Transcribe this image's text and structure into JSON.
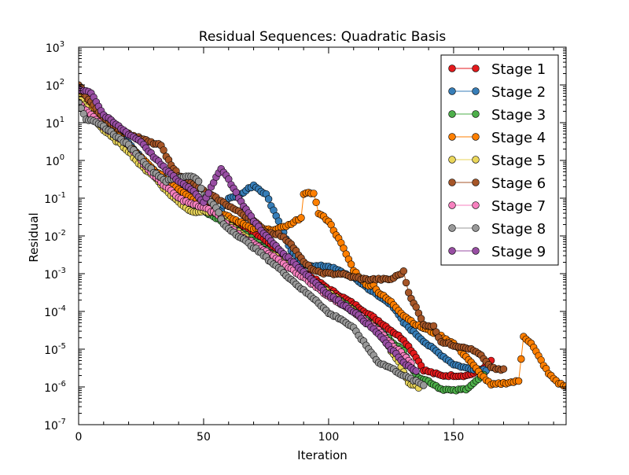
{
  "chart_data": {
    "type": "line",
    "title": "Residual Sequences: Quadratic Basis",
    "xlabel": "Iteration",
    "ylabel": "Residual",
    "xlim": [
      0,
      195
    ],
    "ylim_log10": [
      -7,
      3
    ],
    "yscale": "log",
    "grid": false,
    "legend_position": "upper-right",
    "x_ticks": [
      {
        "value": 0,
        "label": "0"
      },
      {
        "value": 50,
        "label": "50"
      },
      {
        "value": 100,
        "label": "100"
      },
      {
        "value": 150,
        "label": "150"
      }
    ],
    "y_ticks": [
      {
        "exp": -7,
        "base": "10",
        "sup": "-7"
      },
      {
        "exp": -6,
        "base": "10",
        "sup": "-6"
      },
      {
        "exp": -5,
        "base": "10",
        "sup": "-5"
      },
      {
        "exp": -4,
        "base": "10",
        "sup": "-4"
      },
      {
        "exp": -3,
        "base": "10",
        "sup": "-3"
      },
      {
        "exp": -2,
        "base": "10",
        "sup": "-2"
      },
      {
        "exp": -1,
        "base": "10",
        "sup": "-1"
      },
      {
        "exp": 0,
        "base": "10",
        "sup": "0"
      },
      {
        "exp": 1,
        "base": "10",
        "sup": "1"
      },
      {
        "exp": 2,
        "base": "10",
        "sup": "2"
      },
      {
        "exp": 3,
        "base": "10",
        "sup": "3"
      }
    ],
    "series": [
      {
        "name": "Stage 1",
        "color": "#e41a1c",
        "x_end": 165,
        "knots": [
          [
            0,
            1.8
          ],
          [
            10,
            0.95
          ],
          [
            20,
            0.35
          ],
          [
            30,
            -0.25
          ],
          [
            40,
            -0.75
          ],
          [
            50,
            -1.2
          ],
          [
            60,
            -1.5
          ],
          [
            70,
            -1.9
          ],
          [
            80,
            -2.4
          ],
          [
            90,
            -2.95
          ],
          [
            100,
            -3.4
          ],
          [
            110,
            -3.8
          ],
          [
            120,
            -4.25
          ],
          [
            130,
            -4.75
          ],
          [
            135,
            -5.2
          ],
          [
            138,
            -5.55
          ],
          [
            145,
            -5.7
          ],
          [
            155,
            -5.7
          ],
          [
            160,
            -5.6
          ],
          [
            165,
            -5.3
          ]
        ]
      },
      {
        "name": "Stage 2",
        "color": "#377eb8",
        "x_end": 163,
        "knots": [
          [
            0,
            1.7
          ],
          [
            10,
            1.0
          ],
          [
            20,
            0.45
          ],
          [
            30,
            -0.3
          ],
          [
            40,
            -0.8
          ],
          [
            50,
            -1.25
          ],
          [
            55,
            -1.5
          ],
          [
            60,
            -1.0
          ],
          [
            65,
            -0.9
          ],
          [
            70,
            -0.65
          ],
          [
            75,
            -0.9
          ],
          [
            80,
            -1.6
          ],
          [
            85,
            -2.4
          ],
          [
            90,
            -2.75
          ],
          [
            95,
            -2.8
          ],
          [
            100,
            -2.8
          ],
          [
            110,
            -3.1
          ],
          [
            120,
            -3.6
          ],
          [
            125,
            -3.8
          ],
          [
            130,
            -4.3
          ],
          [
            140,
            -4.9
          ],
          [
            150,
            -5.4
          ],
          [
            155,
            -5.5
          ],
          [
            163,
            -5.55
          ]
        ]
      },
      {
        "name": "Stage 3",
        "color": "#4daf4a",
        "x_end": 162,
        "knots": [
          [
            0,
            1.6
          ],
          [
            10,
            0.85
          ],
          [
            20,
            0.3
          ],
          [
            30,
            -0.35
          ],
          [
            40,
            -0.95
          ],
          [
            50,
            -1.35
          ],
          [
            60,
            -1.7
          ],
          [
            70,
            -2.1
          ],
          [
            80,
            -2.6
          ],
          [
            90,
            -3.05
          ],
          [
            100,
            -3.5
          ],
          [
            110,
            -3.95
          ],
          [
            120,
            -4.5
          ],
          [
            130,
            -5.05
          ],
          [
            135,
            -5.7
          ],
          [
            140,
            -5.85
          ],
          [
            145,
            -6.05
          ],
          [
            150,
            -6.1
          ],
          [
            155,
            -6.05
          ],
          [
            162,
            -5.7
          ]
        ]
      },
      {
        "name": "Stage 4",
        "color": "#ff7f00",
        "x_end": 197,
        "knots": [
          [
            0,
            1.85
          ],
          [
            10,
            1.0
          ],
          [
            20,
            0.4
          ],
          [
            30,
            -0.25
          ],
          [
            40,
            -0.75
          ],
          [
            50,
            -1.2
          ],
          [
            60,
            -1.5
          ],
          [
            70,
            -1.8
          ],
          [
            78,
            -1.85
          ],
          [
            85,
            -1.7
          ],
          [
            89,
            -1.5
          ],
          [
            90,
            -0.9
          ],
          [
            94,
            -0.85
          ],
          [
            96,
            -1.4
          ],
          [
            100,
            -1.6
          ],
          [
            105,
            -2.2
          ],
          [
            110,
            -2.9
          ],
          [
            115,
            -3.3
          ],
          [
            118,
            -3.3
          ],
          [
            120,
            -3.5
          ],
          [
            125,
            -3.75
          ],
          [
            130,
            -4.1
          ],
          [
            135,
            -4.35
          ],
          [
            140,
            -4.5
          ],
          [
            145,
            -4.65
          ],
          [
            150,
            -4.85
          ],
          [
            155,
            -5.2
          ],
          [
            160,
            -5.6
          ],
          [
            165,
            -5.95
          ],
          [
            170,
            -5.9
          ],
          [
            176,
            -5.85
          ],
          [
            178,
            -4.65
          ],
          [
            181,
            -4.85
          ],
          [
            185,
            -5.3
          ],
          [
            188,
            -5.65
          ],
          [
            192,
            -5.9
          ],
          [
            197,
            -6.05
          ]
        ]
      },
      {
        "name": "Stage 5",
        "color": "#ead65a",
        "x_end": 136,
        "knots": [
          [
            0,
            1.65
          ],
          [
            10,
            0.8
          ],
          [
            20,
            0.25
          ],
          [
            25,
            -0.15
          ],
          [
            30,
            -0.4
          ],
          [
            35,
            -0.8
          ],
          [
            40,
            -1.1
          ],
          [
            45,
            -1.35
          ],
          [
            50,
            -1.35
          ],
          [
            55,
            -1.4
          ],
          [
            60,
            -1.7
          ],
          [
            70,
            -2.2
          ],
          [
            80,
            -2.6
          ],
          [
            90,
            -3.05
          ],
          [
            100,
            -3.5
          ],
          [
            110,
            -4.0
          ],
          [
            120,
            -4.5
          ],
          [
            125,
            -5.05
          ],
          [
            128,
            -5.35
          ],
          [
            132,
            -5.9
          ],
          [
            136,
            -6.0
          ]
        ]
      },
      {
        "name": "Stage 6",
        "color": "#a65628",
        "x_end": 170,
        "knots": [
          [
            0,
            2.0
          ],
          [
            10,
            1.1
          ],
          [
            20,
            0.7
          ],
          [
            30,
            0.45
          ],
          [
            33,
            0.4
          ],
          [
            35,
            0.1
          ],
          [
            40,
            -0.4
          ],
          [
            50,
            -0.8
          ],
          [
            60,
            -1.2
          ],
          [
            70,
            -1.6
          ],
          [
            75,
            -1.9
          ],
          [
            80,
            -1.95
          ],
          [
            85,
            -2.2
          ],
          [
            90,
            -2.7
          ],
          [
            95,
            -2.95
          ],
          [
            100,
            -3.0
          ],
          [
            105,
            -3.0
          ],
          [
            110,
            -3.1
          ],
          [
            115,
            -3.15
          ],
          [
            120,
            -3.15
          ],
          [
            125,
            -3.15
          ],
          [
            130,
            -2.95
          ],
          [
            132,
            -3.5
          ],
          [
            135,
            -3.9
          ],
          [
            138,
            -4.35
          ],
          [
            142,
            -4.4
          ],
          [
            145,
            -4.8
          ],
          [
            150,
            -4.9
          ],
          [
            155,
            -4.95
          ],
          [
            160,
            -5.1
          ],
          [
            165,
            -5.5
          ],
          [
            170,
            -5.55
          ]
        ]
      },
      {
        "name": "Stage 7",
        "color": "#f781bf",
        "x_end": 133,
        "knots": [
          [
            0,
            1.5
          ],
          [
            5,
            1.2
          ],
          [
            10,
            0.9
          ],
          [
            20,
            0.4
          ],
          [
            30,
            -0.4
          ],
          [
            35,
            -0.7
          ],
          [
            40,
            -1.0
          ],
          [
            45,
            -1.15
          ],
          [
            50,
            -1.25
          ],
          [
            55,
            -1.4
          ],
          [
            60,
            -1.75
          ],
          [
            65,
            -2.0
          ],
          [
            70,
            -2.2
          ],
          [
            80,
            -2.65
          ],
          [
            90,
            -3.1
          ],
          [
            100,
            -3.6
          ],
          [
            110,
            -4.0
          ],
          [
            120,
            -4.5
          ],
          [
            125,
            -4.85
          ],
          [
            133,
            -5.35
          ]
        ]
      },
      {
        "name": "Stage 8",
        "color": "#999999",
        "x_end": 138,
        "knots": [
          [
            0,
            1.55
          ],
          [
            3,
            1.1
          ],
          [
            5,
            1.05
          ],
          [
            10,
            0.9
          ],
          [
            20,
            0.4
          ],
          [
            30,
            -0.3
          ],
          [
            35,
            -0.55
          ],
          [
            40,
            -0.45
          ],
          [
            45,
            -0.4
          ],
          [
            48,
            -0.55
          ],
          [
            50,
            -0.9
          ],
          [
            55,
            -1.25
          ],
          [
            58,
            -1.7
          ],
          [
            65,
            -2.05
          ],
          [
            70,
            -2.3
          ],
          [
            80,
            -2.85
          ],
          [
            90,
            -3.45
          ],
          [
            95,
            -3.7
          ],
          [
            100,
            -4.05
          ],
          [
            105,
            -4.2
          ],
          [
            110,
            -4.45
          ],
          [
            115,
            -4.9
          ],
          [
            120,
            -5.35
          ],
          [
            125,
            -5.5
          ],
          [
            130,
            -5.7
          ],
          [
            138,
            -5.95
          ]
        ]
      },
      {
        "name": "Stage 9",
        "color": "#984ea3",
        "x_end": 135,
        "knots": [
          [
            0,
            1.9
          ],
          [
            5,
            1.8
          ],
          [
            10,
            1.2
          ],
          [
            15,
            0.95
          ],
          [
            20,
            0.7
          ],
          [
            25,
            0.5
          ],
          [
            30,
            0.1
          ],
          [
            35,
            -0.25
          ],
          [
            40,
            -0.55
          ],
          [
            45,
            -0.75
          ],
          [
            50,
            -1.1
          ],
          [
            54,
            -0.6
          ],
          [
            57,
            -0.2
          ],
          [
            60,
            -0.5
          ],
          [
            65,
            -1.1
          ],
          [
            70,
            -1.6
          ],
          [
            75,
            -2.0
          ],
          [
            80,
            -2.35
          ],
          [
            85,
            -2.65
          ],
          [
            90,
            -2.95
          ],
          [
            95,
            -3.25
          ],
          [
            100,
            -3.55
          ],
          [
            110,
            -4.0
          ],
          [
            120,
            -4.6
          ],
          [
            125,
            -5.0
          ],
          [
            130,
            -5.35
          ],
          [
            135,
            -5.6
          ]
        ]
      }
    ]
  }
}
